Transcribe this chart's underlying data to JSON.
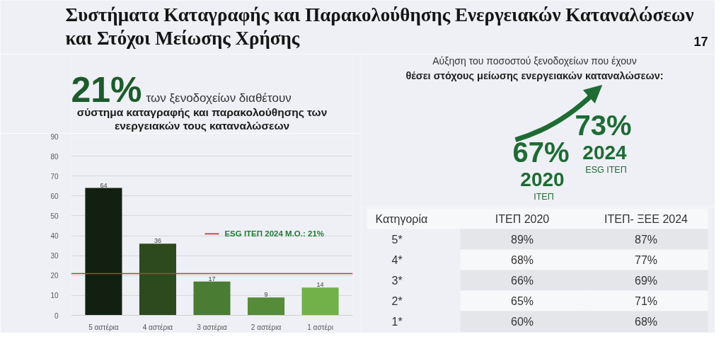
{
  "chart_data": [
    {
      "type": "other",
      "title": "Συστήματα Καταγραφής και Παρακολούθησης Ενεργειακών Καταναλώσεων και Στόχοι Μείωσης Χρήσης",
      "annotations": [
        "17"
      ]
    },
    {
      "type": "bar",
      "title": "21%",
      "subtitle": "των ξενοδοχείων διαθέτουν",
      "annotations": [
        "σύστημα καταγραφής και παρακολούθησης των ενεργειακών τους καταναλώσεων"
      ],
      "categories": [
        "5 αστέρια",
        "4 αστέρια",
        "3 αστέρια",
        "2 αστέρια",
        "1 αστέρι"
      ],
      "values": [
        64,
        36,
        17,
        9,
        14
      ],
      "colors": [
        "#131f10",
        "#2d4a1e",
        "#4a7c33",
        "#568b3a",
        "#72b04a"
      ],
      "ylim": [
        0,
        90
      ],
      "yticks": [
        0,
        10,
        20,
        30,
        40,
        50,
        60,
        70,
        80,
        90
      ],
      "grid": "y",
      "data_labels": true,
      "ref_lines": [
        {
          "axis": "y",
          "value": 21,
          "label": "ESG ΙΤΕΠ 2024  Μ.Ο.: 21%",
          "color": "#c23b3b"
        }
      ]
    },
    {
      "type": "other",
      "title": "Αύξηση του ποσοστού ξενοδοχείων που έχουν",
      "subtitle": "θέσει στόχους μείωσης ενεργειακών καταναλώσεων:",
      "categories": [
        "2020",
        "2024"
      ],
      "values": [
        67,
        73
      ],
      "value_labels": [
        "67%",
        "73%"
      ],
      "annotations": [
        "ΙΤΕΠ",
        "ESG ΙΤΕΠ"
      ]
    },
    {
      "type": "heatmap",
      "ylabel": "Κατηγορία",
      "categories": [
        "ΙΤΕΠ 2020",
        "ΙΤΕΠ- ΞΕΕ 2024"
      ],
      "y_categories": [
        "5*",
        "4*",
        "3*",
        "2*",
        "1*"
      ],
      "cells": [
        [
          89,
          87
        ],
        [
          68,
          77
        ],
        [
          66,
          69
        ],
        [
          65,
          71
        ],
        [
          60,
          68
        ]
      ],
      "cell_labels": [
        [
          "89%",
          "87%"
        ],
        [
          "68%",
          "77%"
        ],
        [
          "66%",
          "69%"
        ],
        [
          "65%",
          "71%"
        ],
        [
          "60%",
          "68%"
        ]
      ]
    }
  ]
}
